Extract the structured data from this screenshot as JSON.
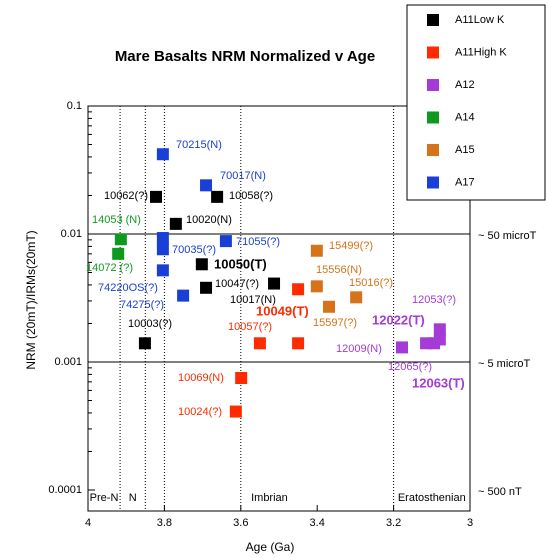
{
  "chart_data": {
    "type": "scatter",
    "title": "Mare Basalts NRM Normalized v Age",
    "x_label": "Age (Ga)",
    "y_label": "NRM (20mT)/IRMs(20mT)",
    "xlim": [
      4,
      3
    ],
    "ylim": [
      0.0001,
      0.1
    ],
    "log_y": true,
    "xticks": [
      4,
      3.8,
      3.6,
      3.4,
      3.2,
      3
    ],
    "yticks": [
      0.1,
      0.01,
      0.001,
      0.0001
    ],
    "vlines": [
      3.8,
      3.6
    ],
    "hlines": [
      {
        "value": 0.01,
        "label": "~ 50 microT"
      },
      {
        "value": 0.001,
        "label": "~ 5 microT"
      },
      {
        "value": 0.0001,
        "label": "~ 500 nT"
      }
    ],
    "eras": [
      {
        "label": "Pre-N",
        "start": 4,
        "end": 3.916
      },
      {
        "label": "N",
        "start": 3.916,
        "end": 3.85
      },
      {
        "label": "Imbrian",
        "start": 3.85,
        "end": 3.2
      },
      {
        "label": "Eratosthenian",
        "start": 3.2,
        "end": 3
      }
    ],
    "series": [
      {
        "name": "A11Low K",
        "color": "#000000",
        "x": [
          3.822,
          3.77,
          3.662,
          3.702,
          3.691,
          3.513,
          3.851
        ],
        "values": [
          0.0195,
          0.012,
          0.0195,
          0.0058,
          0.0038,
          0.0041,
          0.0014
        ],
        "labels": [
          "10062(?)",
          "10020(N)",
          "10058(?)",
          "10050(T)",
          "10047(?)",
          "10017(N)",
          "10003(?)"
        ]
      },
      {
        "name": "A11High K",
        "color": "#ff2a00",
        "x": [
          3.45,
          3.55,
          3.45,
          3.599,
          3.613
        ],
        "values": [
          0.0037,
          0.0014,
          0.0014,
          0.00075,
          0.00041
        ],
        "labels": [
          "10049(T)",
          "10057(?)",
          null,
          "10069(N)",
          "10024(?)"
        ]
      },
      {
        "name": "A12",
        "color": "#a43bd6",
        "x": [
          3.178,
          3.115,
          3.094,
          3.079,
          3.079
        ],
        "values": [
          0.0013,
          0.0014,
          0.0014,
          0.0018,
          0.0015
        ],
        "labels": [
          "12009(N)",
          "12022(T)",
          "12065(?)",
          "12053(?)",
          "12063(T)"
        ]
      },
      {
        "name": "A14",
        "color": "#0f9a1f",
        "x": [
          3.914,
          3.921
        ],
        "values": [
          0.0091,
          0.007
        ],
        "labels": [
          "14053 (N)",
          "14072 (?)"
        ]
      },
      {
        "name": "A15",
        "color": "#d4731a",
        "x": [
          3.401,
          3.401,
          3.298,
          3.369
        ],
        "values": [
          0.0074,
          0.0039,
          0.0032,
          0.0027
        ],
        "labels": [
          "15499(?)",
          "15556(N)",
          "15016(?)",
          "15597(?)"
        ]
      },
      {
        "name": "A17",
        "color": "#1a3fd6",
        "x": [
          3.804,
          3.691,
          3.804,
          3.804,
          3.639,
          3.751,
          3.804
        ],
        "values": [
          0.042,
          0.024,
          0.0093,
          0.0076,
          0.0088,
          0.0033,
          0.0052
        ],
        "labels": [
          "70215(N)",
          "70017(N)",
          null,
          "70035(?)",
          "71055(?)",
          "74275(?)",
          "74220OS(?)"
        ]
      }
    ]
  }
}
